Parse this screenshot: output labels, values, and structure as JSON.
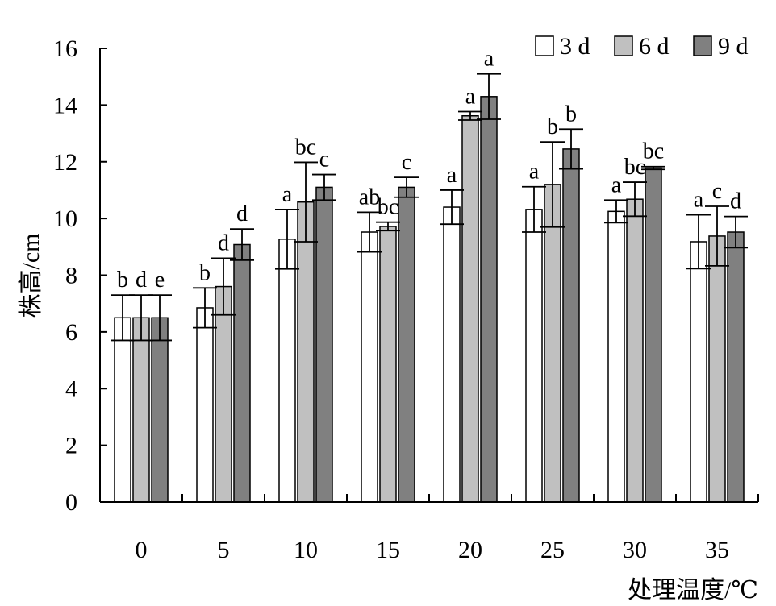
{
  "chart_data": {
    "type": "bar",
    "xlabel": "处理温度/℃",
    "ylabel": "株高/cm",
    "ylim": [
      0,
      16
    ],
    "y_ticks": [
      0,
      2,
      4,
      6,
      8,
      10,
      12,
      14,
      16
    ],
    "grid": false,
    "legend_position": "top-right",
    "categories": [
      "0",
      "5",
      "10",
      "15",
      "20",
      "25",
      "30",
      "35"
    ],
    "series": [
      {
        "name": "3 d",
        "color": "#ffffff",
        "values": [
          6.5,
          6.85,
          9.27,
          9.52,
          10.4,
          10.32,
          10.25,
          9.18
        ],
        "errors": [
          0.8,
          0.7,
          1.05,
          0.7,
          0.6,
          0.8,
          0.4,
          0.95
        ],
        "labels": [
          "b",
          "b",
          "a",
          "ab",
          "a",
          "a",
          "a",
          "a"
        ]
      },
      {
        "name": "6 d",
        "color": "#c0c0c0",
        "values": [
          6.5,
          7.6,
          10.58,
          9.72,
          13.62,
          11.2,
          10.68,
          9.38
        ],
        "errors": [
          0.8,
          1.0,
          1.4,
          0.15,
          0.15,
          1.5,
          0.6,
          1.05
        ],
        "labels": [
          "d",
          "d",
          "bc",
          "bc",
          "a",
          "b",
          "bc",
          "c"
        ]
      },
      {
        "name": "9 d",
        "color": "#808080",
        "values": [
          6.5,
          9.08,
          11.1,
          11.1,
          14.3,
          12.45,
          11.78,
          9.52
        ],
        "errors": [
          0.8,
          0.55,
          0.45,
          0.35,
          0.8,
          0.7,
          0.05,
          0.55
        ],
        "labels": [
          "e",
          "d",
          "c",
          "c",
          "a",
          "b",
          "bc",
          "d"
        ]
      }
    ]
  }
}
